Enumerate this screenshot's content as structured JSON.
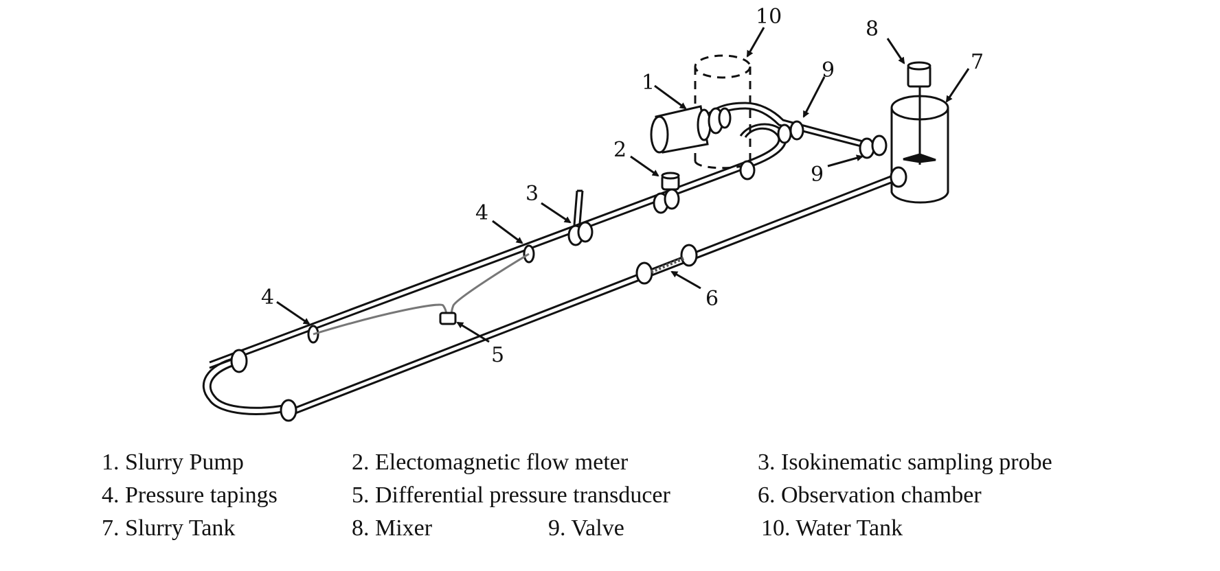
{
  "callouts": {
    "c1": "1",
    "c2": "2",
    "c3": "3",
    "c4a": "4",
    "c4b": "4",
    "c5": "5",
    "c6": "6",
    "c7": "7",
    "c8": "8",
    "c9a": "9",
    "c9b": "9",
    "c10": "10"
  },
  "legend": [
    "1. Slurry Pump",
    "2. Electomagnetic flow meter",
    "3. Isokinematic sampling probe",
    "4. Pressure tapings",
    "5. Differential pressure transducer",
    "6. Observation chamber",
    "7. Slurry Tank",
    "8. Mixer",
    "9. Valve",
    "10. Water Tank"
  ]
}
